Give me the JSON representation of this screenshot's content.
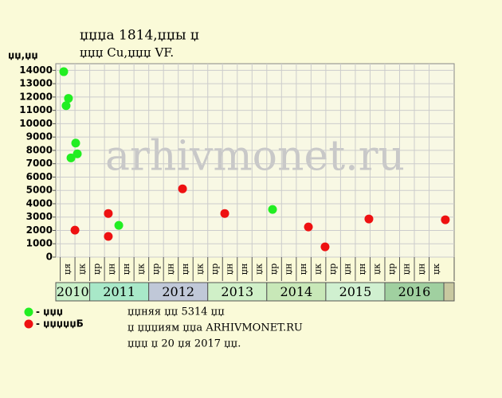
{
  "chart_data": {
    "type": "scatter",
    "title": "џџџа 1814,џџы џ",
    "subtitle": "џџџ Cu,џџџ VF.",
    "y_label": "џџ,џџ",
    "watermark": "arhivmonet.ru",
    "xlim": [
      -0.3,
      26.7
    ],
    "ylim": [
      0,
      14500
    ],
    "yticks": [
      0,
      1000,
      2000,
      3000,
      4000,
      5000,
      6000,
      7000,
      8000,
      9000,
      10000,
      11000,
      12000,
      13000,
      14000
    ],
    "grid": true,
    "quarters": [
      "џя",
      "џк",
      "џр",
      "џн",
      "џн",
      "џк",
      "џр",
      "џн",
      "џн",
      "џк",
      "џр",
      "џн",
      "џн",
      "џк",
      "џр",
      "џн",
      "џн",
      "џк",
      "џр",
      "џн",
      "џн",
      "џк",
      "џр",
      "џн",
      "џн",
      "џк"
    ],
    "years": [
      {
        "label": "2010",
        "start": 0,
        "end": 2,
        "color": "#c8f0c8"
      },
      {
        "label": "2011",
        "start": 2,
        "end": 6,
        "color": "#a8e8c8"
      },
      {
        "label": "2012",
        "start": 6,
        "end": 10,
        "color": "#c0c8d8"
      },
      {
        "label": "2013",
        "start": 10,
        "end": 14,
        "color": "#d0f0c8"
      },
      {
        "label": "2014",
        "start": 14,
        "end": 18,
        "color": "#c8e8b8"
      },
      {
        "label": "2015",
        "start": 18,
        "end": 22,
        "color": "#d0f0d0"
      },
      {
        "label": "2016",
        "start": 22,
        "end": 26,
        "color": "#a0d0a0"
      }
    ],
    "series": [
      {
        "name": "- џџџ",
        "color": "#22ee22",
        "x": [
          0.24,
          0.56,
          0.4,
          1.05,
          0.73,
          1.16,
          3.97,
          14.39
        ],
        "values": [
          13900,
          11900,
          11350,
          8550,
          7440,
          7740,
          2380,
          3570
        ]
      },
      {
        "name": "- џџџџџБ",
        "color": "#ee1111",
        "x": [
          1.0,
          3.26,
          3.26,
          8.29,
          11.15,
          16.82,
          17.95,
          20.92,
          26.1
        ],
        "values": [
          2020,
          3270,
          1550,
          5120,
          3270,
          2260,
          770,
          2860,
          2800
        ]
      }
    ],
    "notes": [
      "џџняя џџ 5314 џџ",
      "џ џџџиям џџа ARHIVMONET.RU",
      "џџџ џ 20 џя 2017 џџ."
    ]
  }
}
